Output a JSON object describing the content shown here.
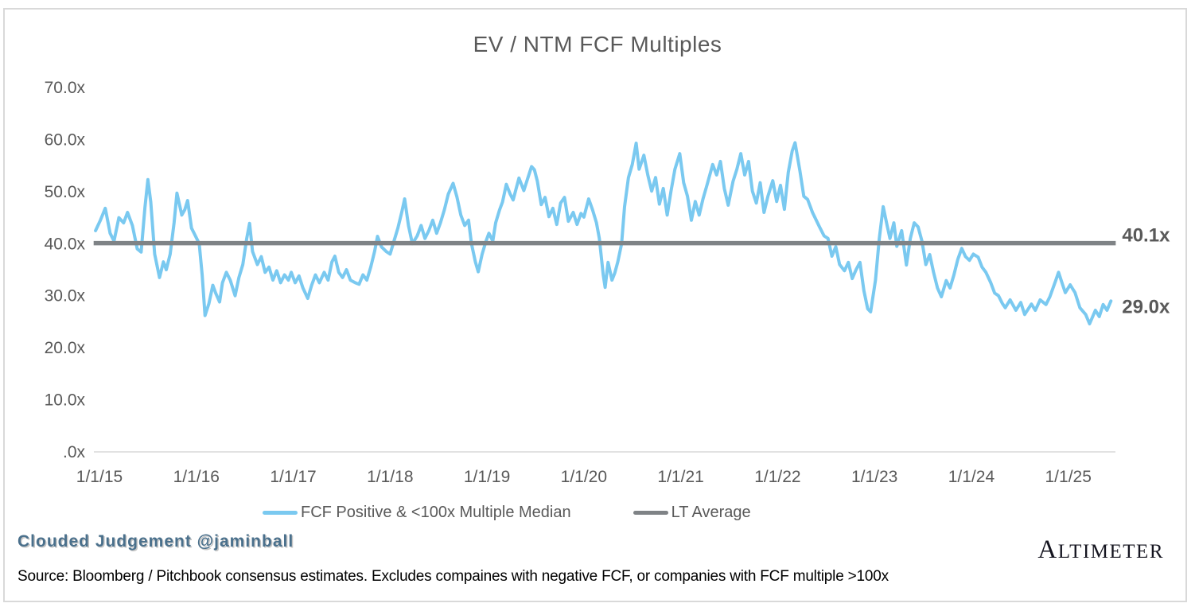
{
  "chart_data": {
    "type": "line",
    "title": "EV / NTM FCF Multiples",
    "grid": false,
    "legend_position": "bottom",
    "y_axis": {
      "min": 0,
      "max": 70,
      "unit": "x",
      "ticks": [
        {
          "label": "70.0x",
          "value": 70
        },
        {
          "label": "60.0x",
          "value": 60
        },
        {
          "label": "50.0x",
          "value": 50
        },
        {
          "label": "40.0x",
          "value": 40
        },
        {
          "label": "30.0x",
          "value": 30
        },
        {
          "label": "20.0x",
          "value": 20
        },
        {
          "label": "10.0x",
          "value": 10
        },
        {
          "label": ".0x",
          "value": 0
        }
      ]
    },
    "x_axis": {
      "ticks": [
        {
          "label": "1/1/15",
          "year": 2015
        },
        {
          "label": "1/1/16",
          "year": 2016
        },
        {
          "label": "1/1/17",
          "year": 2017
        },
        {
          "label": "1/1/18",
          "year": 2018
        },
        {
          "label": "1/1/19",
          "year": 2019
        },
        {
          "label": "1/1/20",
          "year": 2020
        },
        {
          "label": "1/1/21",
          "year": 2021
        },
        {
          "label": "1/1/22",
          "year": 2022
        },
        {
          "label": "1/1/23",
          "year": 2023
        },
        {
          "label": "1/1/24",
          "year": 2024
        },
        {
          "label": "1/1/25",
          "year": 2025
        }
      ]
    },
    "series": [
      {
        "name": "FCF Positive & <100x Multiple Median",
        "color": "#7ac9f0",
        "end_label": "29.0x",
        "end_value": 29.0,
        "end_label_color": "#55c0ed",
        "points": [
          [
            2014.96,
            42.5
          ],
          [
            2015.01,
            44.5
          ],
          [
            2015.06,
            46.8
          ],
          [
            2015.11,
            42.0
          ],
          [
            2015.15,
            40.5
          ],
          [
            2015.2,
            45.0
          ],
          [
            2015.25,
            44.0
          ],
          [
            2015.29,
            46.0
          ],
          [
            2015.34,
            43.5
          ],
          [
            2015.39,
            39.0
          ],
          [
            2015.43,
            38.4
          ],
          [
            2015.47,
            47.0
          ],
          [
            2015.5,
            52.3
          ],
          [
            2015.53,
            48.0
          ],
          [
            2015.57,
            38.0
          ],
          [
            2015.62,
            33.5
          ],
          [
            2015.66,
            36.5
          ],
          [
            2015.69,
            35.0
          ],
          [
            2015.73,
            38.0
          ],
          [
            2015.77,
            44.0
          ],
          [
            2015.8,
            49.7
          ],
          [
            2015.85,
            45.5
          ],
          [
            2015.88,
            46.5
          ],
          [
            2015.91,
            48.3
          ],
          [
            2015.95,
            43.0
          ],
          [
            2015.99,
            41.5
          ],
          [
            2016.03,
            40.0
          ],
          [
            2016.06,
            34.0
          ],
          [
            2016.09,
            26.2
          ],
          [
            2016.13,
            28.5
          ],
          [
            2016.17,
            32.0
          ],
          [
            2016.2,
            30.5
          ],
          [
            2016.24,
            28.8
          ],
          [
            2016.27,
            32.5
          ],
          [
            2016.31,
            34.5
          ],
          [
            2016.35,
            33.0
          ],
          [
            2016.4,
            30.0
          ],
          [
            2016.44,
            33.5
          ],
          [
            2016.48,
            36.0
          ],
          [
            2016.52,
            41.0
          ],
          [
            2016.55,
            43.9
          ],
          [
            2016.58,
            38.5
          ],
          [
            2016.63,
            36.0
          ],
          [
            2016.67,
            37.5
          ],
          [
            2016.71,
            34.5
          ],
          [
            2016.75,
            35.5
          ],
          [
            2016.79,
            33.0
          ],
          [
            2016.83,
            34.8
          ],
          [
            2016.87,
            32.5
          ],
          [
            2016.91,
            34.0
          ],
          [
            2016.95,
            33.0
          ],
          [
            2016.98,
            34.5
          ],
          [
            2017.02,
            32.5
          ],
          [
            2017.06,
            33.8
          ],
          [
            2017.1,
            31.5
          ],
          [
            2017.15,
            29.5
          ],
          [
            2017.19,
            32.0
          ],
          [
            2017.23,
            34.0
          ],
          [
            2017.27,
            32.5
          ],
          [
            2017.32,
            34.5
          ],
          [
            2017.36,
            33.0
          ],
          [
            2017.4,
            36.5
          ],
          [
            2017.43,
            37.6
          ],
          [
            2017.47,
            34.5
          ],
          [
            2017.51,
            33.5
          ],
          [
            2017.55,
            35.0
          ],
          [
            2017.59,
            33.0
          ],
          [
            2017.64,
            32.5
          ],
          [
            2017.68,
            32.2
          ],
          [
            2017.72,
            34.0
          ],
          [
            2017.76,
            33.0
          ],
          [
            2017.8,
            35.5
          ],
          [
            2017.84,
            38.5
          ],
          [
            2017.87,
            41.4
          ],
          [
            2017.91,
            39.4
          ],
          [
            2017.96,
            38.5
          ],
          [
            2018.0,
            38.0
          ],
          [
            2018.04,
            40.5
          ],
          [
            2018.08,
            43.0
          ],
          [
            2018.12,
            46.0
          ],
          [
            2018.15,
            48.6
          ],
          [
            2018.19,
            43.5
          ],
          [
            2018.23,
            40.0
          ],
          [
            2018.28,
            41.5
          ],
          [
            2018.32,
            43.5
          ],
          [
            2018.36,
            41.0
          ],
          [
            2018.4,
            42.5
          ],
          [
            2018.44,
            44.5
          ],
          [
            2018.48,
            42.0
          ],
          [
            2018.52,
            44.0
          ],
          [
            2018.56,
            46.5
          ],
          [
            2018.6,
            49.5
          ],
          [
            2018.65,
            51.6
          ],
          [
            2018.69,
            49.0
          ],
          [
            2018.73,
            45.5
          ],
          [
            2018.77,
            43.5
          ],
          [
            2018.81,
            44.5
          ],
          [
            2018.84,
            40.0
          ],
          [
            2018.88,
            36.5
          ],
          [
            2018.91,
            34.6
          ],
          [
            2018.95,
            38.0
          ],
          [
            2018.99,
            40.5
          ],
          [
            2019.02,
            42.0
          ],
          [
            2019.06,
            40.5
          ],
          [
            2019.09,
            44.0
          ],
          [
            2019.13,
            46.5
          ],
          [
            2019.16,
            48.0
          ],
          [
            2019.2,
            51.4
          ],
          [
            2019.24,
            49.5
          ],
          [
            2019.27,
            48.4
          ],
          [
            2019.3,
            50.5
          ],
          [
            2019.33,
            52.6
          ],
          [
            2019.38,
            50.2
          ],
          [
            2019.42,
            52.5
          ],
          [
            2019.46,
            54.8
          ],
          [
            2019.49,
            54.2
          ],
          [
            2019.52,
            52.0
          ],
          [
            2019.56,
            47.5
          ],
          [
            2019.6,
            48.9
          ],
          [
            2019.64,
            45.2
          ],
          [
            2019.68,
            46.8
          ],
          [
            2019.72,
            43.7
          ],
          [
            2019.76,
            47.8
          ],
          [
            2019.8,
            48.9
          ],
          [
            2019.84,
            44.3
          ],
          [
            2019.89,
            46.0
          ],
          [
            2019.93,
            43.7
          ],
          [
            2019.97,
            45.8
          ],
          [
            2020.0,
            45.1
          ],
          [
            2020.05,
            48.6
          ],
          [
            2020.09,
            46.5
          ],
          [
            2020.13,
            44.0
          ],
          [
            2020.16,
            41.0
          ],
          [
            2020.2,
            34.0
          ],
          [
            2020.22,
            31.6
          ],
          [
            2020.25,
            36.4
          ],
          [
            2020.29,
            33.0
          ],
          [
            2020.32,
            34.4
          ],
          [
            2020.35,
            36.5
          ],
          [
            2020.39,
            40.0
          ],
          [
            2020.42,
            47.1
          ],
          [
            2020.46,
            52.7
          ],
          [
            2020.5,
            55.2
          ],
          [
            2020.54,
            59.3
          ],
          [
            2020.57,
            54.3
          ],
          [
            2020.62,
            57.0
          ],
          [
            2020.66,
            53.2
          ],
          [
            2020.7,
            50.1
          ],
          [
            2020.74,
            52.7
          ],
          [
            2020.78,
            47.6
          ],
          [
            2020.82,
            50.6
          ],
          [
            2020.86,
            45.5
          ],
          [
            2020.9,
            50.1
          ],
          [
            2020.94,
            54.3
          ],
          [
            2020.99,
            57.3
          ],
          [
            2021.03,
            51.7
          ],
          [
            2021.07,
            49.1
          ],
          [
            2021.11,
            44.5
          ],
          [
            2021.15,
            48.1
          ],
          [
            2021.19,
            45.5
          ],
          [
            2021.23,
            48.6
          ],
          [
            2021.27,
            51.2
          ],
          [
            2021.33,
            55.2
          ],
          [
            2021.37,
            53.2
          ],
          [
            2021.41,
            55.8
          ],
          [
            2021.45,
            50.6
          ],
          [
            2021.49,
            47.4
          ],
          [
            2021.54,
            52.0
          ],
          [
            2021.58,
            54.3
          ],
          [
            2021.62,
            57.3
          ],
          [
            2021.66,
            53.2
          ],
          [
            2021.7,
            55.8
          ],
          [
            2021.74,
            50.1
          ],
          [
            2021.78,
            47.8
          ],
          [
            2021.82,
            51.7
          ],
          [
            2021.86,
            46.0
          ],
          [
            2021.9,
            49.1
          ],
          [
            2021.95,
            52.1
          ],
          [
            2021.99,
            48.1
          ],
          [
            2022.03,
            51.2
          ],
          [
            2022.07,
            46.6
          ],
          [
            2022.11,
            53.7
          ],
          [
            2022.15,
            57.8
          ],
          [
            2022.18,
            59.4
          ],
          [
            2022.23,
            54.0
          ],
          [
            2022.27,
            49.1
          ],
          [
            2022.31,
            48.5
          ],
          [
            2022.36,
            46.0
          ],
          [
            2022.43,
            43.3
          ],
          [
            2022.48,
            41.5
          ],
          [
            2022.52,
            41.0
          ],
          [
            2022.56,
            37.6
          ],
          [
            2022.6,
            39.4
          ],
          [
            2022.64,
            36.0
          ],
          [
            2022.69,
            34.8
          ],
          [
            2022.73,
            36.4
          ],
          [
            2022.77,
            33.3
          ],
          [
            2022.81,
            35.0
          ],
          [
            2022.85,
            36.4
          ],
          [
            2022.89,
            31.0
          ],
          [
            2022.93,
            27.5
          ],
          [
            2022.96,
            26.9
          ],
          [
            2023.01,
            33.0
          ],
          [
            2023.05,
            41.0
          ],
          [
            2023.09,
            47.1
          ],
          [
            2023.13,
            43.5
          ],
          [
            2023.16,
            41.0
          ],
          [
            2023.2,
            44.0
          ],
          [
            2023.23,
            39.5
          ],
          [
            2023.28,
            42.5
          ],
          [
            2023.33,
            35.9
          ],
          [
            2023.37,
            41.0
          ],
          [
            2023.41,
            44.0
          ],
          [
            2023.45,
            43.2
          ],
          [
            2023.49,
            40.5
          ],
          [
            2023.53,
            36.0
          ],
          [
            2023.57,
            37.9
          ],
          [
            2023.61,
            34.5
          ],
          [
            2023.65,
            31.5
          ],
          [
            2023.69,
            29.8
          ],
          [
            2023.74,
            32.9
          ],
          [
            2023.78,
            31.5
          ],
          [
            2023.82,
            34.0
          ],
          [
            2023.86,
            37.0
          ],
          [
            2023.9,
            39.1
          ],
          [
            2023.94,
            37.5
          ],
          [
            2023.98,
            36.8
          ],
          [
            2024.02,
            38.0
          ],
          [
            2024.07,
            37.4
          ],
          [
            2024.11,
            35.5
          ],
          [
            2024.15,
            34.5
          ],
          [
            2024.2,
            32.5
          ],
          [
            2024.24,
            30.5
          ],
          [
            2024.28,
            30.0
          ],
          [
            2024.32,
            28.5
          ],
          [
            2024.35,
            27.7
          ],
          [
            2024.4,
            29.2
          ],
          [
            2024.46,
            27.2
          ],
          [
            2024.51,
            28.7
          ],
          [
            2024.55,
            26.4
          ],
          [
            2024.62,
            28.4
          ],
          [
            2024.66,
            27.2
          ],
          [
            2024.71,
            29.2
          ],
          [
            2024.77,
            28.3
          ],
          [
            2024.81,
            29.8
          ],
          [
            2024.87,
            32.9
          ],
          [
            2024.9,
            34.5
          ],
          [
            2024.94,
            32.2
          ],
          [
            2024.97,
            30.6
          ],
          [
            2025.02,
            32.1
          ],
          [
            2025.07,
            30.6
          ],
          [
            2025.12,
            27.7
          ],
          [
            2025.18,
            26.4
          ],
          [
            2025.22,
            24.6
          ],
          [
            2025.28,
            27.2
          ],
          [
            2025.32,
            26.0
          ],
          [
            2025.36,
            28.3
          ],
          [
            2025.4,
            27.2
          ],
          [
            2025.44,
            29.0
          ]
        ]
      },
      {
        "name": "LT Average",
        "type": "hline",
        "value": 40.1,
        "color": "#7f8386",
        "end_label": "40.1x",
        "end_label_color": "#6d7175",
        "x_start": 2014.94,
        "x_end": 2025.49
      }
    ],
    "axis_line_color": "#d9d9d9"
  },
  "footer": {
    "credit": "Clouded Judgement @jaminball",
    "source": "Source: Bloomberg / Pitchbook consensus estimates. Excludes compaines with negative FCF, or companies with FCF multiple >100x",
    "brand": "ALTIMETER"
  }
}
